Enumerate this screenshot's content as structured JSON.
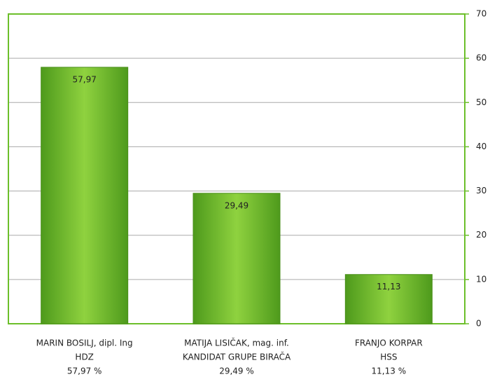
{
  "chart_data": {
    "type": "bar",
    "categories": [
      "MARIN BOSILJ, dipl. Ing",
      "MATIJA LISIČAK, mag. inf.",
      "FRANJO KORPAR"
    ],
    "parties": [
      "HDZ",
      "KANDIDAT GRUPE BIRAČA",
      "HSS"
    ],
    "percent_labels": [
      "57,97 %",
      "29,49 %",
      "11,13 %"
    ],
    "values": [
      57.97,
      29.49,
      11.13
    ],
    "value_labels": [
      "57,97",
      "29,49",
      "11,13"
    ],
    "color": "#6cbf2a",
    "ylim": [
      0,
      70
    ],
    "yticks": [
      0,
      10,
      20,
      30,
      40,
      50,
      60,
      70
    ],
    "grid": true
  }
}
